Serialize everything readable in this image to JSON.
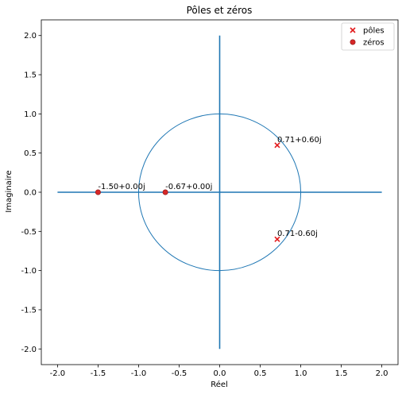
{
  "chart_data": {
    "type": "scatter",
    "title": "Pôles et zéros",
    "xlabel": "Réel",
    "ylabel": "Imaginaire",
    "xlim": [
      -2.2,
      2.2
    ],
    "ylim": [
      -2.2,
      2.2
    ],
    "x_ticks": [
      -2.0,
      -1.5,
      -1.0,
      -0.5,
      0.0,
      0.5,
      1.0,
      1.5,
      2.0
    ],
    "y_ticks": [
      -2.0,
      -1.5,
      -1.0,
      -0.5,
      0.0,
      0.5,
      1.0,
      1.5,
      2.0
    ],
    "x_tick_labels": [
      "-2.0",
      "-1.5",
      "-1.0",
      "-0.5",
      "0.0",
      "0.5",
      "1.0",
      "1.5",
      "2.0"
    ],
    "y_tick_labels": [
      "-2.0",
      "-1.5",
      "-1.0",
      "-0.5",
      "0.0",
      "0.5",
      "1.0",
      "1.5",
      "2.0"
    ],
    "grid": false,
    "legend_position": "top-right",
    "unit_circle": {
      "center": [
        0,
        0
      ],
      "radius": 1.0,
      "color": "#1f77b4"
    },
    "reference_lines": {
      "horizontal": {
        "y": 0,
        "x_range": [
          -2.0,
          2.0
        ],
        "color": "#1f77b4"
      },
      "vertical": {
        "x": 0,
        "y_range": [
          -2.0,
          2.0
        ],
        "color": "#1f77b4"
      }
    },
    "series": [
      {
        "name": "pôles",
        "marker": "x",
        "color": "#e31a1c",
        "points": [
          {
            "x": 0.71,
            "y": 0.6,
            "label": "0.71+0.60j"
          },
          {
            "x": 0.71,
            "y": -0.6,
            "label": "0.71-0.60j"
          }
        ]
      },
      {
        "name": "zéros",
        "marker": "o",
        "color": "#d62728",
        "points": [
          {
            "x": -1.5,
            "y": 0.0,
            "label": "-1.50+0.00j"
          },
          {
            "x": -0.67,
            "y": 0.0,
            "label": "-0.67+0.00j"
          }
        ]
      }
    ]
  }
}
